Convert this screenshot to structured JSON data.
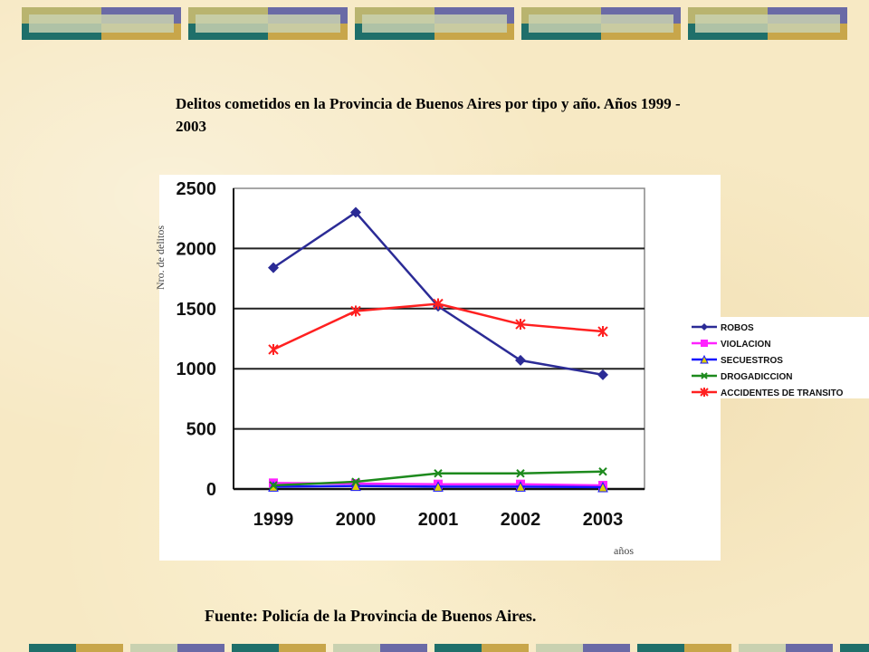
{
  "title": "Delitos cometidos en la Provincia de Buenos Aires por tipo y año. Años 1999 - 2003",
  "source": "Fuente: Policía de la Provincia de Buenos Aires.",
  "colors": {
    "background": "#f7e9c4",
    "band_teal": "#1f6f6a",
    "band_olive": "#b9b46f",
    "band_purple": "#6a6aa6",
    "band_gold": "#c8a64a",
    "band_sage": "#c9d1b0"
  },
  "chart_data": {
    "type": "line",
    "xlabel": "años",
    "ylabel": "Nro. de delitos",
    "categories": [
      "1999",
      "2000",
      "2001",
      "2002",
      "2003"
    ],
    "ylim": [
      0,
      2500
    ],
    "yticks": [
      0,
      500,
      1000,
      1500,
      2000,
      2500
    ],
    "grid": "horizontal",
    "legend_position": "right",
    "series": [
      {
        "name": "ROBOS",
        "color": "#2b2b96",
        "marker": "diamond",
        "values": [
          1840,
          2300,
          1520,
          1070,
          950
        ]
      },
      {
        "name": "VIOLACION",
        "color": "#ff22ff",
        "marker": "square",
        "values": [
          50,
          45,
          40,
          40,
          30
        ]
      },
      {
        "name": "SECUESTROS",
        "color": "#1515ff",
        "marker": "triangle",
        "values": [
          20,
          25,
          20,
          20,
          15
        ]
      },
      {
        "name": "DROGADICCION",
        "color": "#1d8a1d",
        "marker": "x",
        "values": [
          30,
          60,
          130,
          130,
          145
        ]
      },
      {
        "name": "ACCIDENTES DE TRANSITO",
        "color": "#ff2020",
        "marker": "star",
        "values": [
          1160,
          1480,
          1540,
          1370,
          1310
        ]
      }
    ]
  }
}
